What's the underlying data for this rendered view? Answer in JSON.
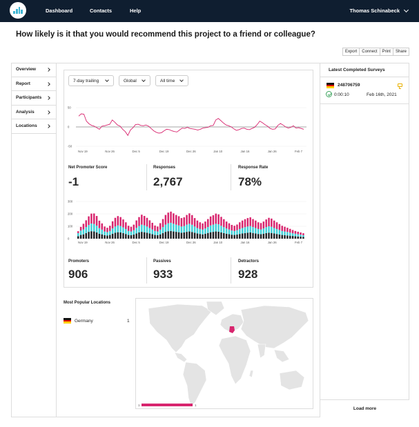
{
  "nav": {
    "links": [
      "Dashboard",
      "Contacts",
      "Help"
    ],
    "user_name": "Thomas Schinabeck"
  },
  "question": "How likely is it that you would recommend this project to a friend or colleague?",
  "actions": [
    "Export",
    "Connect",
    "Print",
    "Share"
  ],
  "sidebar": {
    "items": [
      {
        "label": "Overview"
      },
      {
        "label": "Report"
      },
      {
        "label": "Participants"
      },
      {
        "label": "Analysis"
      },
      {
        "label": "Locations"
      }
    ]
  },
  "filters": {
    "trailing": "7-day trailing",
    "region": "Global",
    "range": "All time"
  },
  "colors": {
    "topbar": "#0f1e30",
    "promoters": "#1e2125",
    "passives": "#3fd0d8",
    "detractors": "#d8256e",
    "line": "#d8256e",
    "map_land": "#e4e4e4",
    "map_highlight": "#d8256e"
  },
  "metrics_top": [
    {
      "label": "Net Promoter Score",
      "value": "-1"
    },
    {
      "label": "Responses",
      "value": "2,767"
    },
    {
      "label": "Response Rate",
      "value": "78%"
    }
  ],
  "metrics_bottom": [
    {
      "label": "Promoters",
      "value": "906"
    },
    {
      "label": "Passives",
      "value": "933"
    },
    {
      "label": "Detractors",
      "value": "928"
    }
  ],
  "chart_data": [
    {
      "type": "line",
      "x_ticks": [
        "Nov 19",
        "Nov 26",
        "Dec 5",
        "Dec 19",
        "Dec 26",
        "Jan 10",
        "Jan 16",
        "Jan 26",
        "Feb 7"
      ],
      "y_ticks": [
        50,
        0,
        -50
      ],
      "ylim": [
        -50,
        50
      ],
      "series": [
        {
          "values": [
            28,
            34,
            33,
            15,
            8,
            4,
            2,
            -2,
            -6,
            2,
            3,
            5,
            7,
            18,
            12,
            5,
            2,
            -6,
            -12,
            -22,
            -8,
            -2,
            6,
            7,
            4,
            3,
            5,
            2,
            -4,
            -10,
            -14,
            -16,
            -15,
            -10,
            -6,
            -7,
            -10,
            -12,
            -13,
            -8,
            -3,
            -4,
            -1,
            -4,
            -5,
            -6,
            -8,
            -6,
            -3,
            -2,
            -1,
            3,
            4,
            18,
            22,
            16,
            10,
            5,
            3,
            0,
            -5,
            -9,
            -7,
            -4,
            -3,
            -6,
            -7,
            -4,
            -1,
            6,
            15,
            11,
            6,
            2,
            -4,
            -6,
            -5,
            4,
            9,
            5,
            0,
            -3,
            -1,
            3,
            -3,
            -2,
            -4,
            -6
          ]
        }
      ]
    },
    {
      "type": "bar",
      "stacked": true,
      "x_ticks": [
        "Nov 19",
        "Nov 26",
        "Dec 5",
        "Dec 19",
        "Dec 26",
        "Jan 10",
        "Jan 16",
        "Jan 26",
        "Feb 7"
      ],
      "y_ticks": [
        300,
        200,
        100,
        0
      ],
      "ylim": [
        0,
        300
      ],
      "series": [
        {
          "name": "Promoters",
          "values": [
            20,
            30,
            35,
            45,
            55,
            60,
            58,
            50,
            40,
            35,
            28,
            25,
            30,
            40,
            48,
            52,
            50,
            45,
            38,
            30,
            28,
            33,
            42,
            50,
            55,
            52,
            48,
            42,
            36,
            30,
            28,
            35,
            45,
            55,
            60,
            62,
            58,
            55,
            52,
            48,
            50,
            55,
            58,
            54,
            48,
            42,
            38,
            35,
            40,
            46,
            52,
            55,
            58,
            56,
            50,
            45,
            40,
            36,
            32,
            30,
            33,
            38,
            42,
            45,
            48,
            50,
            46,
            42,
            38,
            36,
            40,
            45,
            48,
            46,
            42,
            38,
            34,
            30,
            28,
            26,
            24,
            22,
            20,
            18,
            16,
            14
          ]
        },
        {
          "name": "Passives",
          "values": [
            25,
            35,
            40,
            48,
            55,
            62,
            60,
            55,
            45,
            38,
            30,
            28,
            32,
            42,
            50,
            55,
            52,
            46,
            40,
            32,
            30,
            35,
            45,
            52,
            58,
            55,
            50,
            44,
            38,
            32,
            30,
            38,
            48,
            58,
            64,
            66,
            62,
            58,
            55,
            50,
            52,
            58,
            62,
            58,
            50,
            44,
            40,
            38,
            42,
            48,
            55,
            58,
            62,
            60,
            54,
            48,
            42,
            38,
            34,
            32,
            35,
            40,
            44,
            48,
            50,
            52,
            48,
            44,
            40,
            38,
            42,
            48,
            52,
            50,
            44,
            40,
            36,
            32,
            30,
            28,
            25,
            22,
            20,
            18,
            16,
            14
          ]
        },
        {
          "name": "Detractors",
          "values": [
            15,
            30,
            45,
            55,
            70,
            80,
            85,
            78,
            60,
            50,
            40,
            35,
            42,
            58,
            70,
            75,
            72,
            64,
            54,
            42,
            38,
            45,
            60,
            72,
            80,
            76,
            70,
            62,
            54,
            44,
            40,
            52,
            65,
            78,
            86,
            90,
            84,
            78,
            74,
            68,
            70,
            78,
            84,
            78,
            68,
            60,
            54,
            50,
            56,
            64,
            72,
            76,
            82,
            80,
            72,
            64,
            56,
            50,
            45,
            42,
            46,
            54,
            60,
            64,
            68,
            70,
            64,
            60,
            54,
            52,
            56,
            62,
            68,
            66,
            60,
            54,
            48,
            42,
            38,
            34,
            30,
            26,
            22,
            20,
            18,
            16
          ]
        }
      ]
    }
  ],
  "locations": {
    "title": "Most Popular Locations",
    "items": [
      {
        "name": "Germany",
        "count": "1"
      }
    ],
    "legend_min": "1",
    "legend_max": "1"
  },
  "recent": {
    "title": "Latest Completed Surveys",
    "items": [
      {
        "id": "248706759",
        "duration": "0:00:10",
        "date": "Feb 16th, 2021"
      }
    ],
    "load_more": "Load more"
  }
}
